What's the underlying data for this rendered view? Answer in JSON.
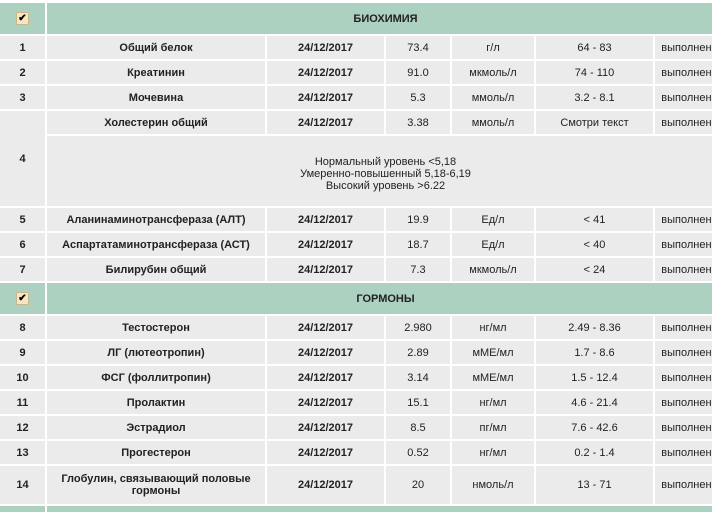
{
  "sections": [
    {
      "title": "БИОХИМИЯ",
      "checked": true,
      "rows": [
        {
          "n": "1",
          "name": "Общий белок",
          "date": "24/12/2017",
          "value": "73.4",
          "unit": "г/л",
          "ref": "64 - 83",
          "status": "выполнено"
        },
        {
          "n": "2",
          "name": "Креатинин",
          "date": "24/12/2017",
          "value": "91.0",
          "unit": "мкмоль/л",
          "ref": "74 - 110",
          "status": "выполнено"
        },
        {
          "n": "3",
          "name": "Мочевина",
          "date": "24/12/2017",
          "value": "5.3",
          "unit": "ммоль/л",
          "ref": "3.2 - 8.1",
          "status": "выполнено"
        },
        {
          "n": "4",
          "name": "Холестерин общий",
          "date": "24/12/2017",
          "value": "3.38",
          "unit": "ммоль/л",
          "ref": "Смотри текст",
          "status": "выполнено",
          "note": [
            "Нормальный уровень <5,18",
            "Умеренно-повышенный 5,18-6,19",
            "Высокий уровень >6.22"
          ]
        },
        {
          "n": "5",
          "name": "Аланинаминотрансфераза (АЛТ)",
          "date": "24/12/2017",
          "value": "19.9",
          "unit": "Ед/л",
          "ref": "< 41",
          "status": "выполнено"
        },
        {
          "n": "6",
          "name": "Аспартатаминотрансфераза (АСТ)",
          "date": "24/12/2017",
          "value": "18.7",
          "unit": "Ед/л",
          "ref": "< 40",
          "status": "выполнено"
        },
        {
          "n": "7",
          "name": "Билирубин общий",
          "date": "24/12/2017",
          "value": "7.3",
          "unit": "мкмоль/л",
          "ref": "< 24",
          "status": "выполнено"
        }
      ]
    },
    {
      "title": "ГОРМОНЫ",
      "checked": true,
      "rows": [
        {
          "n": "8",
          "name": "Тестостерон",
          "date": "24/12/2017",
          "value": "2.980",
          "unit": "нг/мл",
          "ref": "2.49 - 8.36",
          "status": "выполнено"
        },
        {
          "n": "9",
          "name": "ЛГ (лютеотропин)",
          "date": "24/12/2017",
          "value": "2.89",
          "unit": "мМЕ/мл",
          "ref": "1.7 - 8.6",
          "status": "выполнено"
        },
        {
          "n": "10",
          "name": "ФСГ (фоллитропин)",
          "date": "24/12/2017",
          "value": "3.14",
          "unit": "мМЕ/мл",
          "ref": "1.5 - 12.4",
          "status": "выполнено"
        },
        {
          "n": "11",
          "name": "Пролактин",
          "date": "24/12/2017",
          "value": "15.1",
          "unit": "нг/мл",
          "ref": "4.6 - 21.4",
          "status": "выполнено"
        },
        {
          "n": "12",
          "name": "Эстрадиол",
          "date": "24/12/2017",
          "value": "8.5",
          "unit": "пг/мл",
          "ref": "7.6 - 42.6",
          "status": "выполнено"
        },
        {
          "n": "13",
          "name": "Прогестерон",
          "date": "24/12/2017",
          "value": "0.52",
          "unit": "нг/мл",
          "ref": "0.2 - 1.4",
          "status": "выполнено"
        },
        {
          "n": "14",
          "name": "Глобулин, связывающий половые гормоны",
          "date": "24/12/2017",
          "value": "20",
          "unit": "нмоль/л",
          "ref": "13 - 71",
          "status": "выполнено"
        }
      ]
    }
  ]
}
